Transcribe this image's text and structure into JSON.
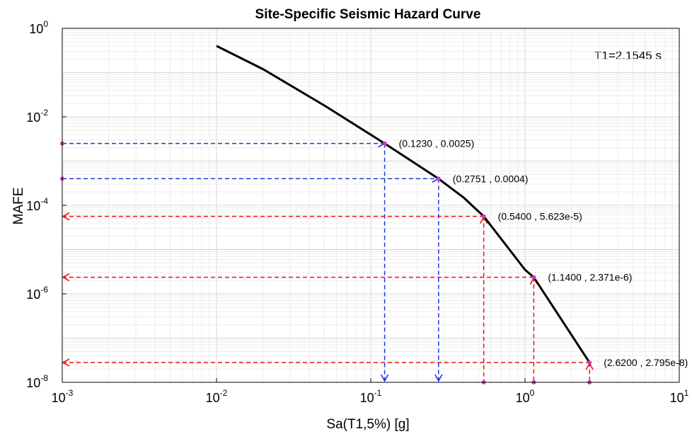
{
  "chart_data": {
    "type": "line",
    "title": "Site-Specific Seismic Hazard Curve",
    "xlabel": "Sa(T1,5%) [g]",
    "ylabel": "MAFE",
    "xscale": "log",
    "yscale": "log",
    "xlim": [
      0.001,
      10
    ],
    "ylim": [
      1e-08,
      1
    ],
    "grid": true,
    "x_ticks": [
      {
        "value": 0.001,
        "base": "10",
        "exp": "-3"
      },
      {
        "value": 0.01,
        "base": "10",
        "exp": "-2"
      },
      {
        "value": 0.1,
        "base": "10",
        "exp": "-1"
      },
      {
        "value": 1,
        "base": "10",
        "exp": "0"
      },
      {
        "value": 10,
        "base": "10",
        "exp": "1"
      }
    ],
    "y_ticks": [
      {
        "value": 1,
        "base": "10",
        "exp": "0"
      },
      {
        "value": 0.01,
        "base": "10",
        "exp": "-2"
      },
      {
        "value": 0.0001,
        "base": "10",
        "exp": "-4"
      },
      {
        "value": 1e-06,
        "base": "10",
        "exp": "-6"
      },
      {
        "value": 1e-08,
        "base": "10",
        "exp": "-8"
      }
    ],
    "annotation_text": "T1=2.1545 s",
    "hazard_curve": {
      "color": "#000000",
      "x": [
        0.01,
        0.02,
        0.05,
        0.123,
        0.2751,
        0.4,
        0.54,
        1.0,
        1.14,
        2.62
      ],
      "y": [
        0.4,
        0.12,
        0.018,
        0.0025,
        0.0004,
        0.00015,
        5.623e-05,
        3.5e-06,
        2.371e-06,
        2.795e-08
      ]
    },
    "marked_points": [
      {
        "x": 0.123,
        "y": 0.0025,
        "label": "(0.1230 , 0.0025)",
        "color": "#2233dd"
      },
      {
        "x": 0.2751,
        "y": 0.0004,
        "label": "(0.2751 , 0.0004)",
        "color": "#2233dd"
      },
      {
        "x": 0.54,
        "y": 5.623e-05,
        "label": "(0.5400 , 5.623e-5)",
        "color": "#ee1111"
      },
      {
        "x": 1.14,
        "y": 2.371e-06,
        "label": "(1.1400 , 2.371e-6)",
        "color": "#ee1111"
      },
      {
        "x": 2.62,
        "y": 2.795e-08,
        "label": "(2.6200 , 2.795e-8)",
        "color": "#ee1111"
      }
    ],
    "colors": {
      "curve": "#000000",
      "blue_guides": "#2233dd",
      "red_guides": "#ee1111",
      "markers": "#cc33cc",
      "grid_major": "#d6d6d6",
      "grid_minor": "#ececec"
    }
  }
}
